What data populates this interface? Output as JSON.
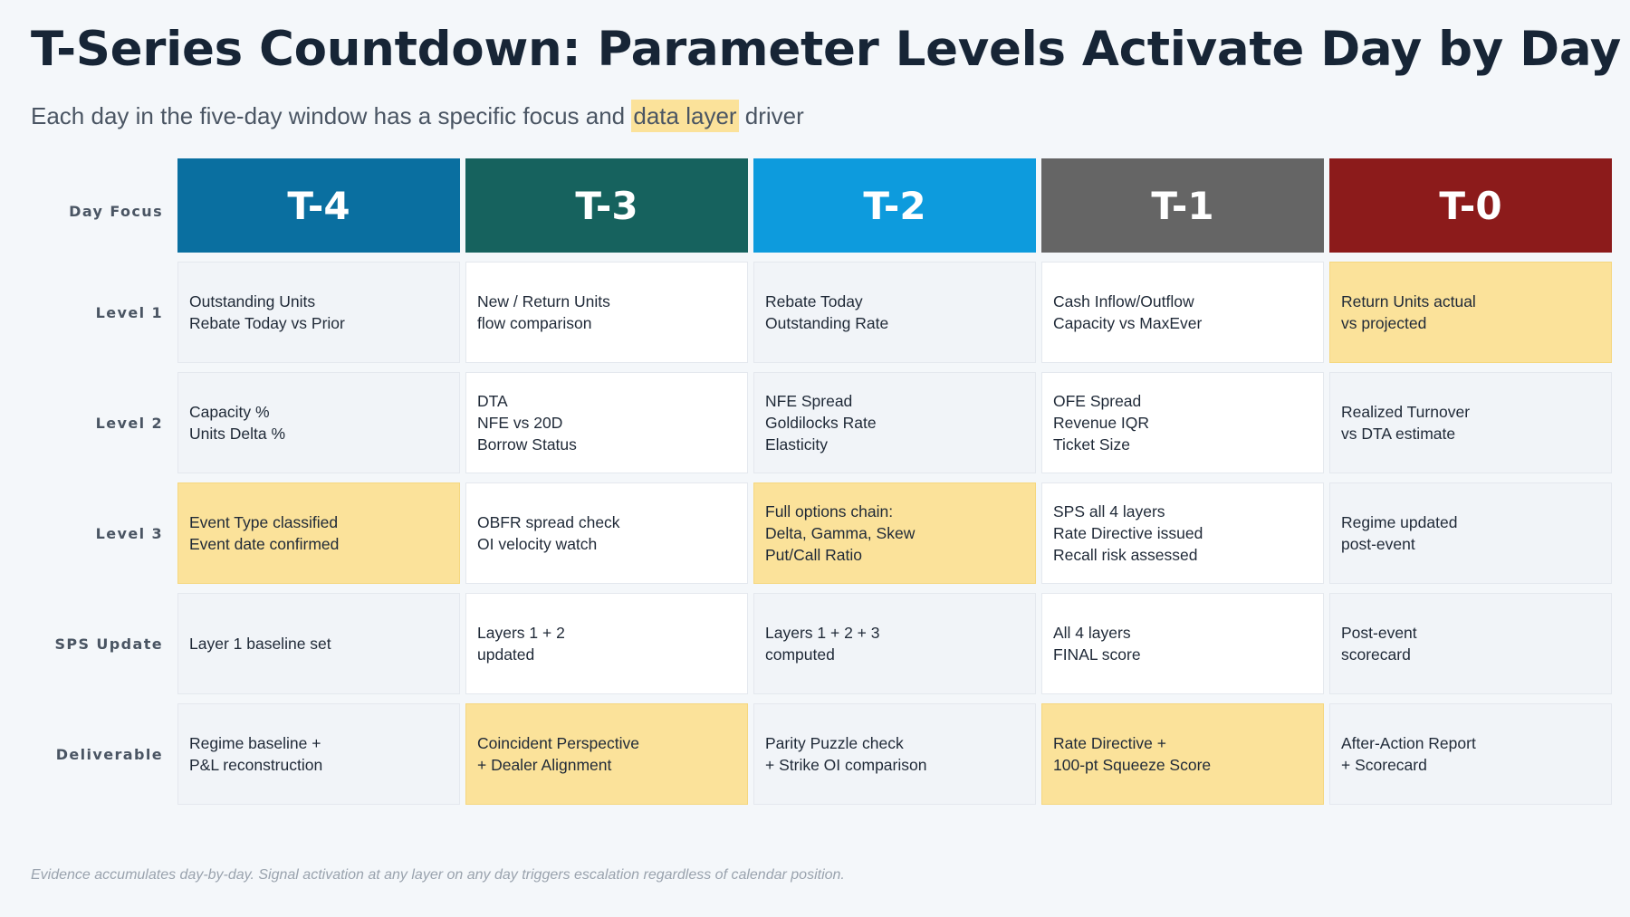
{
  "title": "T-Series Countdown: Parameter Levels Activate Day by Day",
  "subtitle": {
    "before": "Each day in the five-day window has a specific focus and ",
    "highlight": "data layer",
    "after": " driver"
  },
  "row_labels": {
    "day_focus": "Day Focus",
    "level1": "Level 1",
    "level2": "Level 2",
    "level3": "Level 3",
    "sps": "SPS Update",
    "deliverable": "Deliverable"
  },
  "colors": {
    "t4": "#0a6fa0",
    "t3": "#16625e",
    "t2": "#0d9bdd",
    "t1": "#656565",
    "t0": "#8c1b1b",
    "highlight": "#fbe29a"
  },
  "days": [
    {
      "label": "T-4",
      "level1": [
        "Outstanding Units",
        "Rebate Today vs Prior"
      ],
      "level2": [
        "Capacity %",
        "Units Delta %"
      ],
      "level3": [
        "Event Type classified",
        "Event date confirmed"
      ],
      "sps": [
        "Layer 1 baseline set"
      ],
      "deliverable": [
        "Regime baseline +",
        "P&L reconstruction"
      ]
    },
    {
      "label": "T-3",
      "level1": [
        "New / Return Units",
        "flow comparison"
      ],
      "level2": [
        "DTA",
        "NFE vs 20D",
        "Borrow Status"
      ],
      "level3": [
        "OBFR spread check",
        "OI velocity watch"
      ],
      "sps": [
        "Layers 1 + 2",
        "updated"
      ],
      "deliverable": [
        "Coincident Perspective",
        "+ Dealer Alignment"
      ]
    },
    {
      "label": "T-2",
      "level1": [
        "Rebate Today",
        "Outstanding Rate"
      ],
      "level2": [
        "NFE Spread",
        "Goldilocks Rate",
        "Elasticity"
      ],
      "level3": [
        "Full options chain:",
        "Delta, Gamma, Skew",
        "Put/Call Ratio"
      ],
      "sps": [
        "Layers 1 + 2 + 3",
        "computed"
      ],
      "deliverable": [
        "Parity Puzzle check",
        "+ Strike OI comparison"
      ]
    },
    {
      "label": "T-1",
      "level1": [
        "Cash Inflow/Outflow",
        "Capacity vs MaxEver"
      ],
      "level2": [
        "OFE Spread",
        "Revenue IQR",
        "Ticket Size"
      ],
      "level3": [
        "SPS all 4 layers",
        "Rate Directive issued",
        "Recall risk assessed"
      ],
      "sps": [
        "All 4 layers",
        "FINAL score"
      ],
      "deliverable": [
        "Rate Directive +",
        "100-pt Squeeze Score"
      ]
    },
    {
      "label": "T-0",
      "level1": [
        "Return Units actual",
        "vs projected"
      ],
      "level2": [
        "Realized Turnover",
        "vs DTA estimate"
      ],
      "level3": [
        "Regime updated",
        "post-event"
      ],
      "sps": [
        "Post-event",
        "scorecard"
      ],
      "deliverable": [
        "After-Action Report",
        "+ Scorecard"
      ]
    }
  ],
  "footer": "Evidence accumulates day-by-day. Signal activation at any layer on any day triggers escalation regardless of calendar position."
}
